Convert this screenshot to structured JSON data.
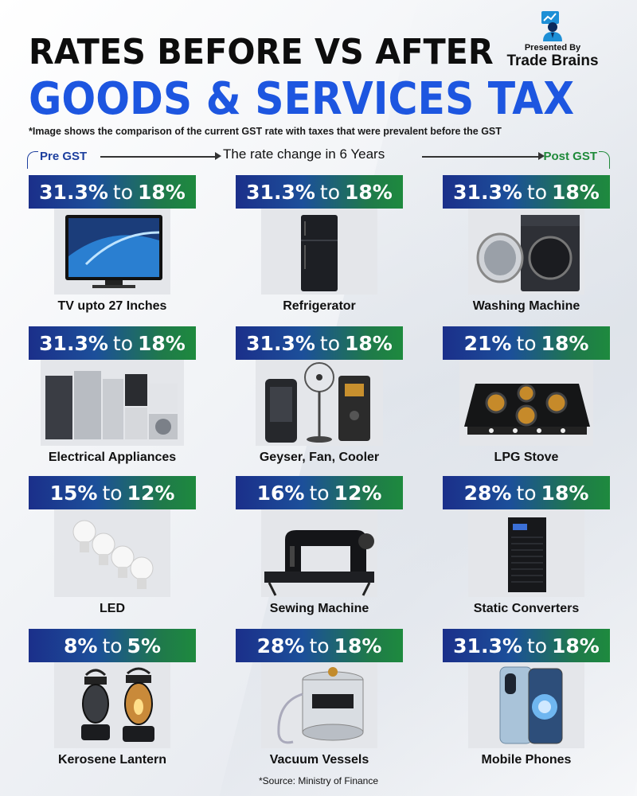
{
  "header": {
    "title_line1": "RATES BEFORE VS AFTER",
    "title_line2": "GOODS & SERVICES TAX",
    "presented_by": "Presented By",
    "brand_name": "Trade Brains",
    "note": "*Image shows the comparison of the current GST rate with taxes that were prevalent before the GST"
  },
  "timeline": {
    "pre_label": "Pre GST",
    "middle_label": "The rate change in 6 Years",
    "post_label": "Post GST"
  },
  "colors": {
    "title_blue": "#1d56e0",
    "gradient_start": "#1b2f8a",
    "gradient_end": "#1e8a3e",
    "pre_color": "#1d3f9e",
    "post_color": "#1f8a3a"
  },
  "items": [
    {
      "before": "31.3%",
      "to": "to",
      "after": "18%",
      "label": "TV upto 27 Inches",
      "icon": "tv-icon"
    },
    {
      "before": "31.3%",
      "to": "to",
      "after": "18%",
      "label": "Refrigerator",
      "icon": "refrigerator-icon"
    },
    {
      "before": "31.3%",
      "to": "to",
      "after": "18%",
      "label": "Washing Machine",
      "icon": "washing-machine-icon"
    },
    {
      "before": "31.3%",
      "to": "to",
      "after": "18%",
      "label": "Electrical Appliances",
      "icon": "appliances-icon"
    },
    {
      "before": "31.3%",
      "to": "to",
      "after": "18%",
      "label": "Geyser, Fan, Cooler",
      "icon": "fan-cooler-icon"
    },
    {
      "before": "21%",
      "to": "to",
      "after": "18%",
      "label": "LPG Stove",
      "icon": "stove-icon"
    },
    {
      "before": "15%",
      "to": "to",
      "after": "12%",
      "label": "LED",
      "icon": "led-bulb-icon"
    },
    {
      "before": "16%",
      "to": "to",
      "after": "12%",
      "label": "Sewing Machine",
      "icon": "sewing-machine-icon"
    },
    {
      "before": "28%",
      "to": "to",
      "after": "18%",
      "label": "Static Converters",
      "icon": "converter-icon"
    },
    {
      "before": "8%",
      "to": "to",
      "after": "5%",
      "label": "Kerosene Lantern",
      "icon": "lantern-icon"
    },
    {
      "before": "28%",
      "to": "to",
      "after": "18%",
      "label": "Vacuum Vessels",
      "icon": "vacuum-vessel-icon"
    },
    {
      "before": "31.3%",
      "to": "to",
      "after": "18%",
      "label": "Mobile Phones",
      "icon": "mobile-phone-icon"
    }
  ],
  "source": "*Source: Ministry of Finance"
}
